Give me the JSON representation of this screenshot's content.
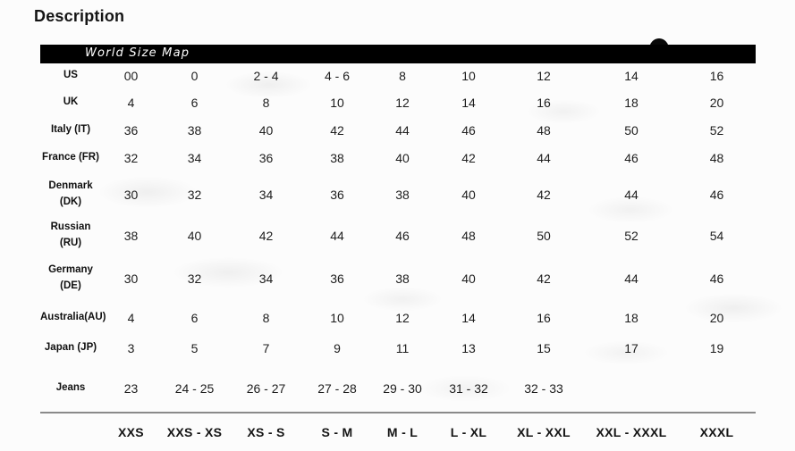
{
  "page": {
    "title": "Description"
  },
  "table": {
    "header": "World Size Map",
    "rows": [
      {
        "label": "US",
        "label_lines": [
          "US"
        ],
        "values": [
          "00",
          "0",
          "2 - 4",
          "4 - 6",
          "8",
          "10",
          "12",
          "14",
          "16"
        ]
      },
      {
        "label": "UK",
        "label_lines": [
          "UK"
        ],
        "values": [
          "4",
          "6",
          "8",
          "10",
          "12",
          "14",
          "16",
          "18",
          "20"
        ]
      },
      {
        "label": "Italy (IT)",
        "label_lines": [
          "Italy (IT)"
        ],
        "values": [
          "36",
          "38",
          "40",
          "42",
          "44",
          "46",
          "48",
          "50",
          "52"
        ]
      },
      {
        "label": "France (FR)",
        "label_lines": [
          "France (FR)"
        ],
        "values": [
          "32",
          "34",
          "36",
          "38",
          "40",
          "42",
          "44",
          "46",
          "48"
        ]
      },
      {
        "label": "Denmark (DK)",
        "label_lines": [
          "Denmark",
          "(DK)"
        ],
        "values": [
          "30",
          "32",
          "34",
          "36",
          "38",
          "40",
          "42",
          "44",
          "46"
        ]
      },
      {
        "label": "Russian (RU)",
        "label_lines": [
          "Russian (RU)"
        ],
        "values": [
          "38",
          "40",
          "42",
          "44",
          "46",
          "48",
          "50",
          "52",
          "54"
        ]
      },
      {
        "label": "Germany (DE)",
        "label_lines": [
          "Germany",
          "(DE)"
        ],
        "values": [
          "30",
          "32",
          "34",
          "36",
          "38",
          "40",
          "42",
          "44",
          "46"
        ]
      },
      {
        "label": "Australia(AU)",
        "label_lines": [
          "Australia(AU)"
        ],
        "values": [
          "4",
          "6",
          "8",
          "10",
          "12",
          "14",
          "16",
          "18",
          "20"
        ]
      },
      {
        "label": "Japan (JP)",
        "label_lines": [
          "Japan (JP)"
        ],
        "values": [
          "3",
          "5",
          "7",
          "9",
          "11",
          "13",
          "15",
          "17",
          "19"
        ]
      },
      {
        "label": "Jeans",
        "label_lines": [
          "Jeans"
        ],
        "values": [
          "23",
          "24 - 25",
          "26 - 27",
          "27 - 28",
          "29 - 30",
          "31 - 32",
          "32 - 33",
          "",
          ""
        ]
      }
    ],
    "footer": [
      "XXS",
      "XXS - XS",
      "XS - S",
      "S - M",
      "M - L",
      "L - XL",
      "XL - XXL",
      "XXL - XXXL",
      "XXXL"
    ]
  },
  "colors": {
    "header_bg": "#000000",
    "header_text": "#ffffff",
    "text": "#1f1f1f",
    "separator": "#8a8a8a"
  }
}
